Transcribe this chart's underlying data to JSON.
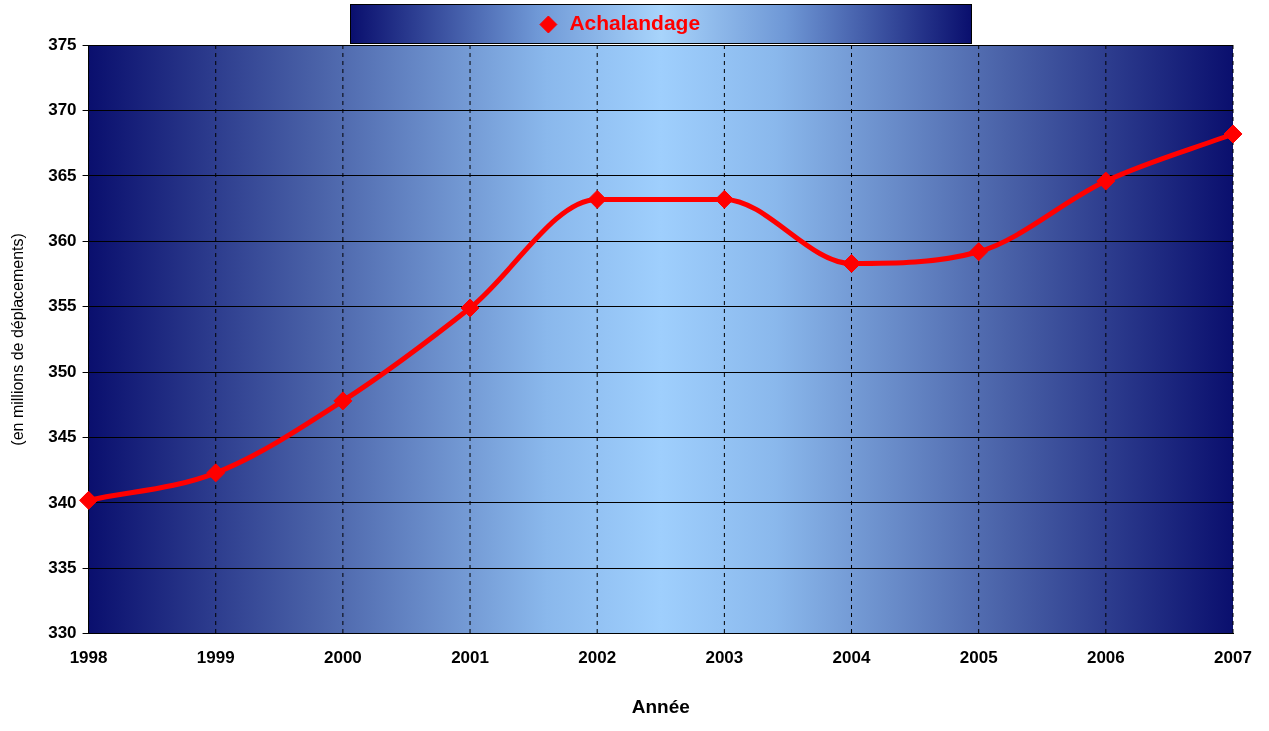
{
  "chart_data": {
    "type": "line",
    "xlabel": "Année",
    "ylabel": "(en millions de déplacements)",
    "categories": [
      "1998",
      "1999",
      "2000",
      "2001",
      "2002",
      "2003",
      "2004",
      "2005",
      "2006",
      "2007"
    ],
    "series": [
      {
        "name": "Achalandage",
        "color": "#ff0000",
        "values": [
          340.2,
          342.3,
          347.8,
          354.9,
          363.2,
          363.2,
          358.3,
          359.2,
          364.6,
          368.2
        ]
      }
    ],
    "ylim": [
      330,
      375
    ],
    "yticks": [
      330,
      335,
      340,
      345,
      350,
      355,
      360,
      365,
      370,
      375
    ],
    "grid": true,
    "legend": "top",
    "marker": "diamond",
    "line_style": "solid"
  }
}
